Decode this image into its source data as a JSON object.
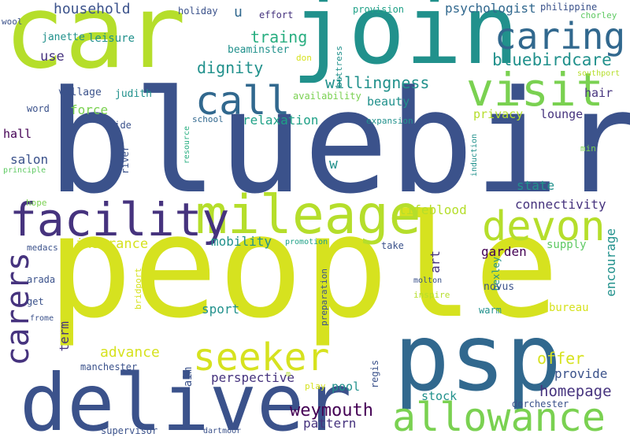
{
  "palette": {
    "lime": "#b5de2b",
    "yellow": "#d6e21f",
    "green": "#5ec962",
    "teal": "#21918c",
    "teal_green": "#1fa187",
    "blue": "#31688e",
    "indigo": "#3b528b",
    "purple": "#46337e",
    "dark": "#440154",
    "light_green": "#7ad151",
    "aqua": "#28ae80"
  },
  "words": {
    "people": "people",
    "bluebird": "bluebird",
    "car": "car",
    "join": "join",
    "psp": "psp",
    "deliver": "deliver",
    "mileage": "mileage",
    "facility": "facility",
    "visit": "visit",
    "caring": "caring",
    "call": "call",
    "devon": "devon",
    "allowance": "allowance",
    "seeker": "seeker",
    "carers": "carers",
    "weymouth": "weymouth",
    "bluebirdcare": "bluebirdcare",
    "willingness": "willingness",
    "dignity": "dignity",
    "traing": "traing",
    "homepage": "homepage",
    "household": "household",
    "psychologist": "psychologist",
    "u": "u",
    "use": "use",
    "leisure": "leisure",
    "janette": "janette",
    "beaminster": "beaminster",
    "holiday": "holiday",
    "effort": "effort",
    "provision": "provision",
    "philippine": "philippine",
    "chorley": "chorley",
    "wool": "wool",
    "don": "don",
    "buttress": "buttress",
    "southport": "southport",
    "availability": "availability",
    "beauty": "beauty",
    "hair": "hair",
    "village": "village",
    "judith": "judith",
    "word": "word",
    "force": "force",
    "privacy": "privacy",
    "lounge": "lounge",
    "hall": "hall",
    "ride": "ride",
    "school": "school",
    "relaxation": "relaxation",
    "expansion": "expansion",
    "salon": "salon",
    "principle": "principle",
    "river": "river",
    "resource": "resource",
    "induction": "induction",
    "min": "min",
    "w": "w",
    "state": "state",
    "connectivity": "connectivity",
    "hope": "hope",
    "lifeblood": "lifeblood",
    "mobility": "mobility",
    "insurance": "insurance",
    "medacs": "medacs",
    "promotion": "promotion",
    "take": "take",
    "garden": "garden",
    "supply": "supply",
    "encourage": "encourage",
    "bexley": "bexley",
    "art": "art",
    "arada": "arada",
    "bridport": "bridport",
    "molton": "molton",
    "preparation": "preparation",
    "inspire": "inspire",
    "novus": "novus",
    "get": "get",
    "sport": "sport",
    "warm": "warm",
    "bureau": "bureau",
    "frome": "frome",
    "term": "term",
    "advance": "advance",
    "offer": "offer",
    "manchester": "manchester",
    "aim": "aim",
    "perspective": "perspective",
    "provide": "provide",
    "regis": "regis",
    "m": "m",
    "play": "play",
    "pool": "pool",
    "stock": "stock",
    "pattern": "pattern",
    "dorchester": "dorchester",
    "supervisor": "supervisor",
    "dartmoor": "dartmoor"
  }
}
